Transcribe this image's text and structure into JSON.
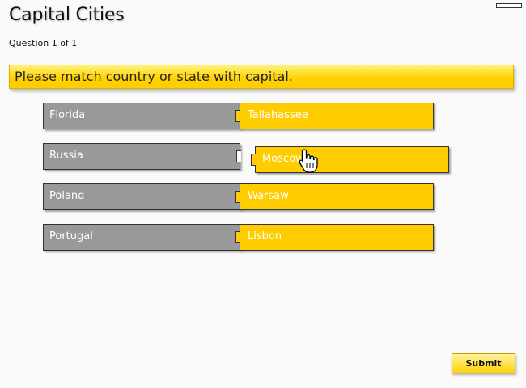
{
  "quiz": {
    "title": "Capital Cities",
    "question_counter": "Question 1 of 1",
    "prompt": "Please match country or state with capital."
  },
  "pairs": [
    {
      "country": "Florida",
      "capital": "Tallahassee"
    },
    {
      "country": "Russia",
      "capital": "Moscow"
    },
    {
      "country": "Poland",
      "capital": "Warsaw"
    },
    {
      "country": "Portugal",
      "capital": "Lisbon"
    }
  ],
  "buttons": {
    "submit": "Submit"
  },
  "colors": {
    "country_tile": "#999999",
    "capital_tile": "#ffcc00",
    "accent": "#ffd200"
  },
  "icons": {
    "cursor": "hand-pointer-icon",
    "window_control": "minimize-icon"
  }
}
